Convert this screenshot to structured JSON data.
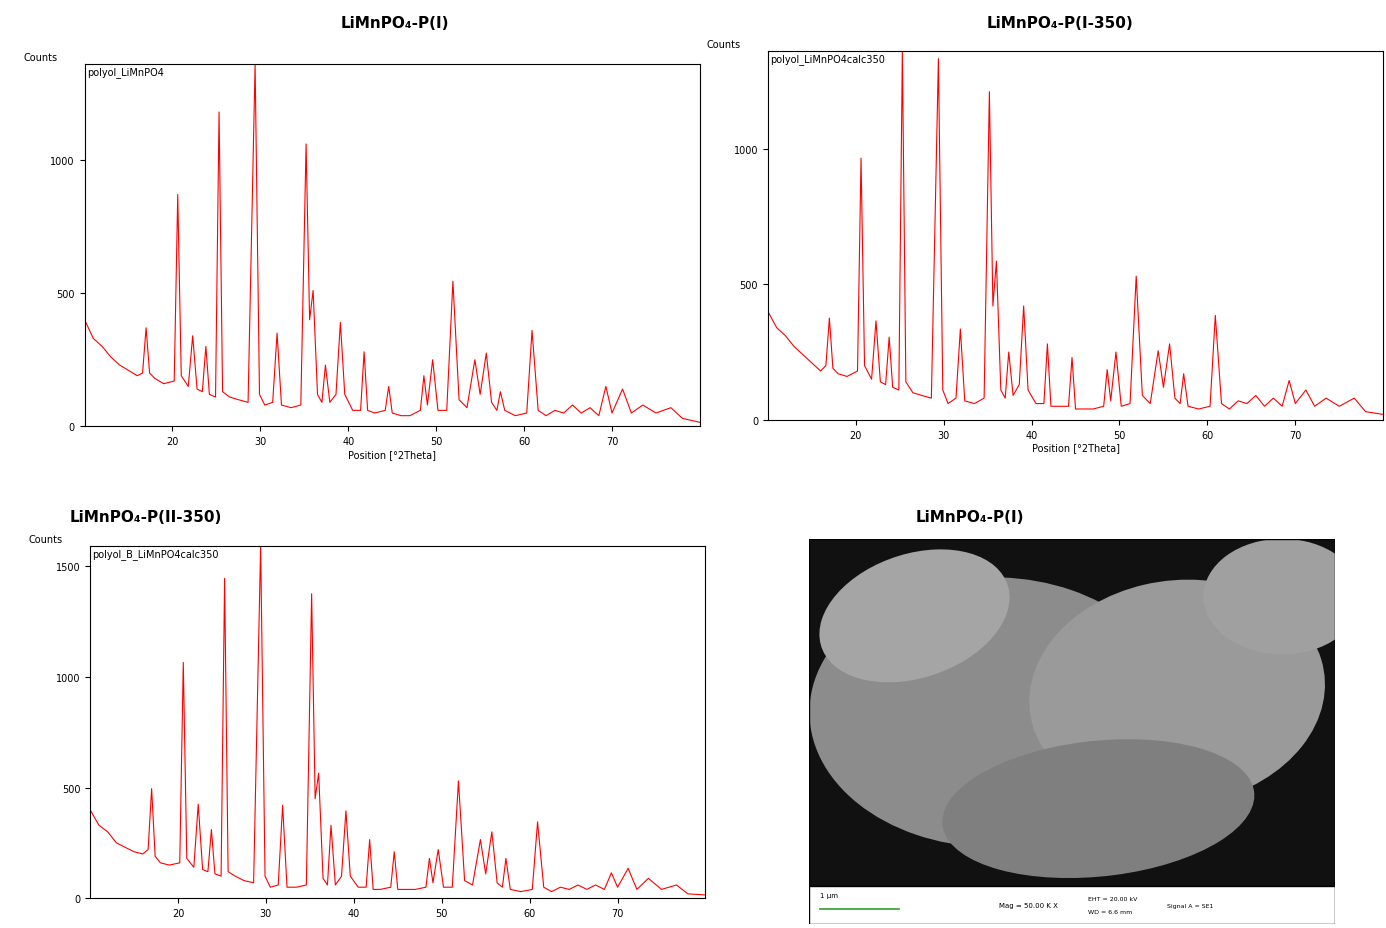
{
  "chart_data": [
    {
      "type": "line",
      "title": "LiMnPO₄-P(I)",
      "annotation": "polyol_LiMnPO4",
      "ylabel": "Counts",
      "xlabel": "Position [°2Theta]",
      "color": "#ff0000",
      "xlim": [
        10,
        80
      ],
      "xticks": [
        20,
        30,
        40,
        50,
        60,
        70
      ],
      "ylim": [
        0,
        1360
      ],
      "yticks": [
        0,
        500,
        1000
      ],
      "x": [
        10,
        11,
        12,
        13,
        14,
        15,
        16,
        16.6,
        17.0,
        17.4,
        18,
        19,
        20.2,
        20.6,
        21.0,
        21.8,
        22.3,
        22.8,
        23.4,
        23.8,
        24.2,
        24.9,
        25.3,
        25.7,
        26.5,
        27.5,
        28.6,
        29.4,
        29.9,
        30.5,
        31.4,
        31.9,
        32.4,
        33.5,
        34.6,
        35.2,
        35.6,
        36.0,
        36.5,
        37.0,
        37.4,
        37.9,
        38.6,
        39.1,
        39.6,
        40.5,
        41.4,
        41.8,
        42.2,
        43.0,
        44.2,
        44.6,
        45.0,
        46.0,
        47.0,
        48.2,
        48.6,
        49.0,
        49.6,
        50.2,
        51.2,
        51.9,
        52.6,
        53.5,
        54.4,
        55.0,
        55.7,
        56.3,
        56.9,
        57.3,
        57.8,
        59.0,
        60.3,
        60.9,
        61.6,
        62.5,
        63.5,
        64.5,
        65.5,
        66.5,
        67.5,
        68.5,
        69.3,
        70.0,
        71.2,
        72.2,
        73.5,
        75.0,
        76.7,
        78.0,
        80.0
      ],
      "values": [
        400,
        330,
        300,
        260,
        230,
        210,
        190,
        200,
        370,
        200,
        180,
        160,
        170,
        870,
        190,
        150,
        340,
        140,
        130,
        300,
        120,
        110,
        1180,
        130,
        110,
        100,
        90,
        1360,
        120,
        80,
        90,
        350,
        80,
        70,
        80,
        1060,
        400,
        510,
        120,
        90,
        230,
        90,
        120,
        390,
        120,
        60,
        60,
        280,
        60,
        50,
        60,
        150,
        50,
        40,
        40,
        60,
        190,
        80,
        250,
        60,
        60,
        545,
        100,
        70,
        250,
        120,
        275,
        90,
        60,
        130,
        60,
        40,
        50,
        360,
        60,
        40,
        60,
        50,
        80,
        50,
        70,
        40,
        150,
        50,
        140,
        50,
        80,
        50,
        70,
        30,
        15
      ]
    },
    {
      "type": "line",
      "title": "LiMnPO₄-P(I-350)",
      "annotation": "polyol_LiMnPO4calc350",
      "ylabel": "Counts",
      "xlabel": "Position [°2Theta]",
      "color": "#ff0000",
      "xlim": [
        10,
        80
      ],
      "xticks": [
        20,
        30,
        40,
        50,
        60,
        70
      ],
      "ylim": [
        0,
        1360
      ],
      "yticks": [
        0,
        500,
        1000
      ],
      "x": [
        10,
        11,
        12,
        13,
        14,
        15,
        16,
        16.6,
        17.0,
        17.4,
        18,
        19,
        20.2,
        20.6,
        21.0,
        21.8,
        22.3,
        22.8,
        23.4,
        23.8,
        24.2,
        24.9,
        25.3,
        25.7,
        26.5,
        27.5,
        28.6,
        29.4,
        29.9,
        30.5,
        31.4,
        31.9,
        32.4,
        33.5,
        34.6,
        35.2,
        35.6,
        36.0,
        36.5,
        37.0,
        37.4,
        37.9,
        38.6,
        39.1,
        39.6,
        40.5,
        41.4,
        41.8,
        42.2,
        43.0,
        44.2,
        44.6,
        45.0,
        46.0,
        47.0,
        48.2,
        48.6,
        49.0,
        49.6,
        50.2,
        51.2,
        51.9,
        52.6,
        53.5,
        54.4,
        55.0,
        55.7,
        56.3,
        56.9,
        57.3,
        57.8,
        59.0,
        60.3,
        60.9,
        61.6,
        62.5,
        63.5,
        64.5,
        65.5,
        66.5,
        67.5,
        68.5,
        69.3,
        70.0,
        71.2,
        72.2,
        73.5,
        75.0,
        76.7,
        78.0,
        80.0
      ],
      "values": [
        400,
        340,
        310,
        270,
        240,
        210,
        180,
        200,
        375,
        190,
        170,
        160,
        180,
        965,
        200,
        150,
        365,
        140,
        130,
        305,
        120,
        110,
        1360,
        140,
        100,
        90,
        80,
        1332,
        110,
        60,
        80,
        335,
        70,
        60,
        80,
        1210,
        420,
        585,
        110,
        80,
        250,
        90,
        130,
        420,
        110,
        60,
        60,
        280,
        50,
        50,
        50,
        230,
        40,
        40,
        40,
        50,
        185,
        70,
        250,
        50,
        60,
        530,
        90,
        60,
        255,
        120,
        280,
        80,
        60,
        170,
        50,
        40,
        50,
        385,
        60,
        40,
        70,
        60,
        90,
        50,
        80,
        50,
        145,
        60,
        110,
        50,
        80,
        50,
        80,
        30,
        20
      ]
    },
    {
      "type": "line",
      "title": "LiMnPO₄-P(II-350)",
      "annotation": "polyol_B_LiMnPO4calc350",
      "ylabel": "Counts",
      "color": "#ff0000",
      "xlim": [
        10,
        80
      ],
      "xticks": [
        20,
        30,
        40,
        50,
        60,
        70
      ],
      "ylim": [
        0,
        1590
      ],
      "yticks": [
        0,
        500,
        1000,
        1500
      ],
      "x": [
        10,
        11,
        12,
        13,
        14,
        15,
        16,
        16.6,
        17.0,
        17.4,
        18,
        19,
        20.2,
        20.6,
        21.0,
        21.8,
        22.3,
        22.8,
        23.4,
        23.8,
        24.2,
        24.9,
        25.3,
        25.7,
        26.5,
        27.5,
        28.6,
        29.4,
        29.9,
        30.5,
        31.4,
        31.9,
        32.4,
        33.5,
        34.6,
        35.2,
        35.6,
        36.0,
        36.5,
        37.0,
        37.4,
        37.9,
        38.6,
        39.1,
        39.6,
        40.5,
        41.4,
        41.8,
        42.2,
        43.0,
        44.2,
        44.6,
        45.0,
        46.0,
        47.0,
        48.2,
        48.6,
        49.0,
        49.6,
        50.2,
        51.2,
        51.9,
        52.6,
        53.5,
        54.4,
        55.0,
        55.7,
        56.3,
        56.9,
        57.3,
        57.8,
        59.0,
        60.3,
        60.9,
        61.6,
        62.5,
        63.5,
        64.5,
        65.5,
        66.5,
        67.5,
        68.5,
        69.3,
        70.0,
        71.2,
        72.2,
        73.5,
        75.0,
        76.7,
        78.0,
        80.0
      ],
      "values": [
        400,
        330,
        300,
        250,
        230,
        210,
        200,
        220,
        495,
        190,
        160,
        150,
        160,
        1065,
        180,
        140,
        425,
        130,
        120,
        310,
        110,
        100,
        1445,
        120,
        100,
        80,
        70,
        1590,
        100,
        50,
        60,
        420,
        50,
        50,
        60,
        1375,
        450,
        565,
        90,
        60,
        330,
        60,
        100,
        395,
        100,
        50,
        50,
        265,
        40,
        40,
        50,
        210,
        40,
        40,
        40,
        50,
        180,
        70,
        220,
        50,
        50,
        530,
        80,
        60,
        265,
        110,
        300,
        70,
        50,
        180,
        40,
        30,
        40,
        345,
        50,
        30,
        50,
        40,
        60,
        40,
        60,
        40,
        115,
        50,
        135,
        40,
        90,
        40,
        60,
        20,
        15
      ]
    }
  ],
  "image": {
    "title": "LiMnPO₄-P(I)",
    "scale_bar": "1 µm",
    "magnification": "Mag = 50.00 K X",
    "eht": "EHT = 20.00 kV",
    "wd": "WD = 6.6 mm",
    "signal": "Signal A = SE1"
  }
}
